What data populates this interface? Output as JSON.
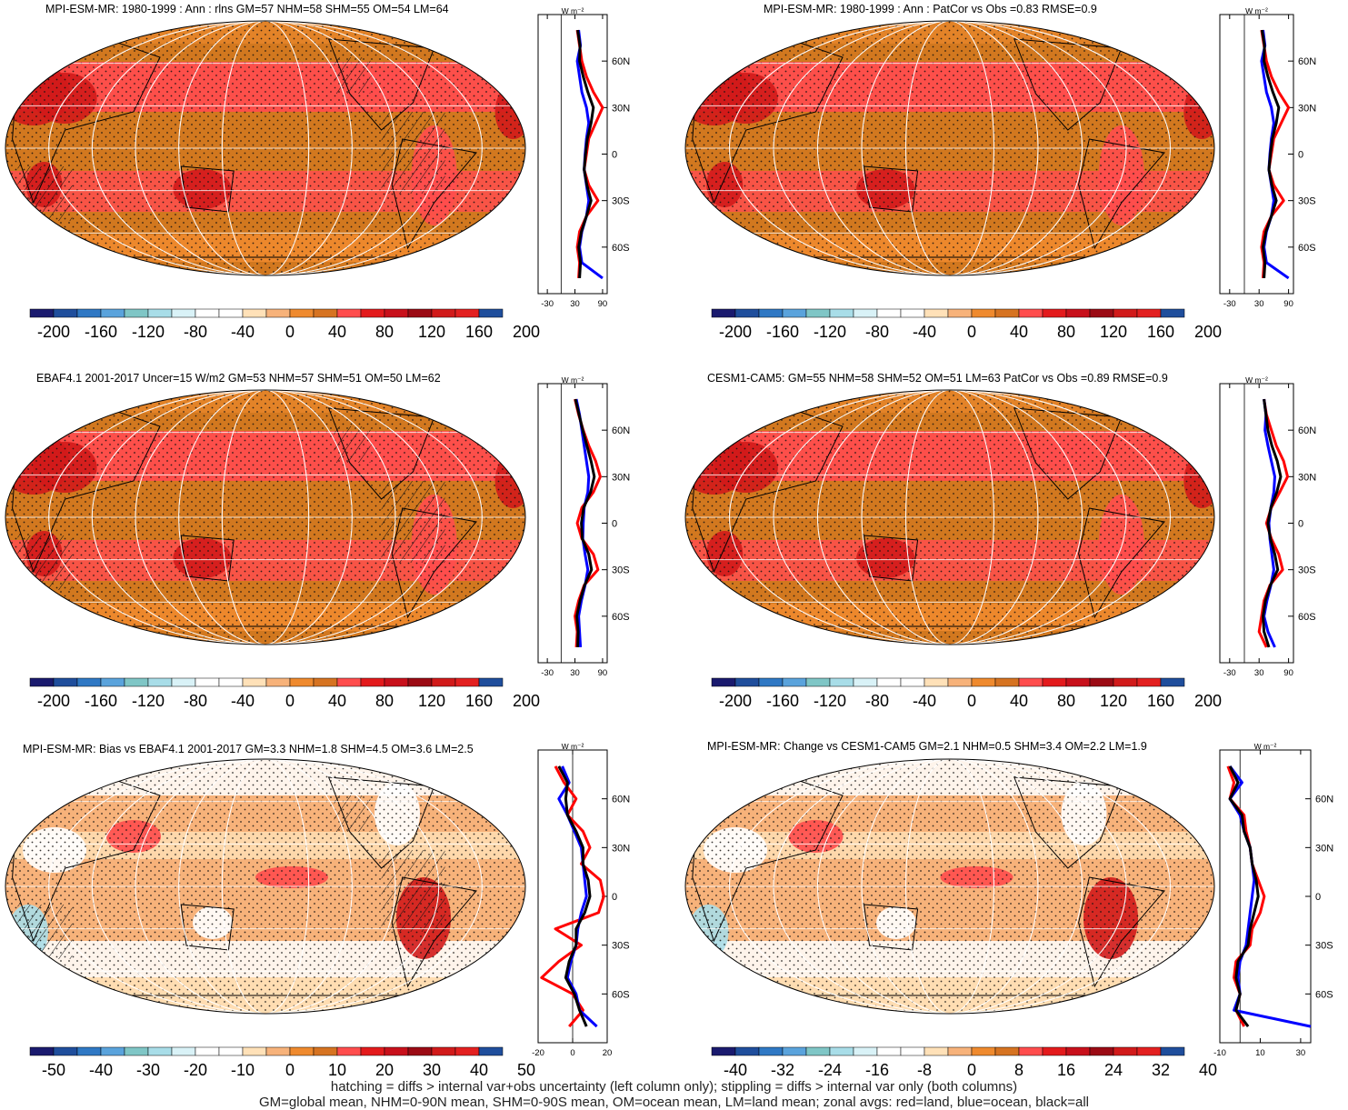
{
  "panels": [
    {
      "title": "MPI-ESM-MR: 1980-1999 : Ann : rlns GM=57 NHM=58 SHM=55 OM=54 LM=64",
      "kind": "mean",
      "hatch": true
    },
    {
      "title": "MPI-ESM-MR: 1980-1999 : Ann : PatCor vs Obs =0.83 RMSE=0.9",
      "kind": "mean",
      "hatch": false
    },
    {
      "title": "EBAF4.1 2001-2017 Uncer=15 W/m2 GM=53 NHM=57 SHM=51 OM=50 LM=62",
      "kind": "mean",
      "hatch": true
    },
    {
      "title": "CESM1-CAM5: GM=55 NHM=58 SHM=52 OM=51 LM=63 PatCor vs Obs =0.89 RMSE=0.9",
      "kind": "mean",
      "hatch": false
    },
    {
      "title": "MPI-ESM-MR: Bias vs EBAF4.1 2001-2017 GM=3.3 NHM=1.8 SHM=4.5 OM=3.6 LM=2.5",
      "kind": "bias",
      "hatch": true
    },
    {
      "title": "MPI-ESM-MR: Change vs CESM1-CAM5 GM=2.1 NHM=0.5 SHM=3.4 OM=2.2 LM=1.9",
      "kind": "change",
      "hatch": false
    }
  ],
  "zonal_units": "W m⁻²",
  "lat_ticks": [
    "60N",
    "30N",
    "0",
    "30S",
    "60S"
  ],
  "colorbars": {
    "mean": {
      "labels": [
        "-200",
        "-160",
        "-120",
        "-80",
        "-40",
        "0",
        "40",
        "80",
        "120",
        "160",
        "200"
      ]
    },
    "bias": {
      "labels": [
        "-50",
        "-40",
        "-30",
        "-20",
        "-10",
        "0",
        "10",
        "20",
        "30",
        "40",
        "50"
      ]
    },
    "change": {
      "labels": [
        "-40",
        "-32",
        "-24",
        "-16",
        "-8",
        "0",
        "8",
        "16",
        "24",
        "32",
        "40"
      ]
    }
  },
  "palette": [
    "#1a1a6e",
    "#1f4e9c",
    "#2f78c4",
    "#5aa3dc",
    "#7fc6c6",
    "#a8dde8",
    "#d9f2f7",
    "#ffffff",
    "#ffffff",
    "#ffe1b8",
    "#f7b27a",
    "#ef8a2e",
    "#d67321",
    "#ff4d4d",
    "#e31a1c",
    "#c8101b",
    "#9b0a14",
    "#d11a1a",
    "#e32020",
    "#1f4e9c"
  ],
  "map_colors": {
    "base_mean": "#d2781f",
    "warm": "#ff4d4d",
    "hot": "#d11a1a",
    "orange": "#ef8a2e",
    "light": "#ffe1b8",
    "white": "#ffffff",
    "blue": "#a8dde8"
  },
  "chart_data": [
    {
      "type": "line",
      "panel": "MPI-ESM-MR rlns 1980-1999",
      "x_axis": {
        "ticks": [
          "-30",
          "30",
          "90"
        ],
        "range": [
          -50,
          100
        ]
      },
      "y_axis": {
        "ticks": [
          "60N",
          "30N",
          "0",
          "30S",
          "60S"
        ],
        "range": [
          -90,
          90
        ]
      },
      "series": [
        {
          "name": "red=land",
          "color": "#ff0000",
          "lat": [
            80,
            70,
            60,
            50,
            40,
            30,
            20,
            10,
            0,
            -10,
            -20,
            -30,
            -40,
            -50,
            -60,
            -70,
            -80
          ],
          "values": [
            35,
            40,
            45,
            55,
            70,
            90,
            75,
            60,
            55,
            50,
            60,
            80,
            55,
            40,
            35,
            40,
            38
          ]
        },
        {
          "name": "blue=ocean",
          "color": "#0000ff",
          "lat": [
            80,
            70,
            60,
            50,
            40,
            30,
            20,
            10,
            0,
            -10,
            -20,
            -30,
            -40,
            -50,
            -60,
            -70,
            -80
          ],
          "values": [
            38,
            42,
            35,
            40,
            45,
            55,
            60,
            55,
            52,
            50,
            55,
            60,
            55,
            45,
            40,
            45,
            90
          ]
        },
        {
          "name": "black=all",
          "color": "#000000",
          "lat": [
            80,
            70,
            60,
            50,
            40,
            30,
            20,
            10,
            0,
            -10,
            -20,
            -30,
            -40,
            -50,
            -60,
            -70,
            -80
          ],
          "values": [
            36,
            41,
            40,
            48,
            58,
            70,
            65,
            57,
            53,
            50,
            56,
            65,
            55,
            44,
            38,
            42,
            40
          ]
        }
      ]
    },
    {
      "type": "line",
      "panel": "MPI-ESM-MR PatCor",
      "x_axis": {
        "ticks": [
          "-30",
          "30",
          "90"
        ],
        "range": [
          -50,
          100
        ]
      },
      "y_axis": {
        "ticks": [
          "60N",
          "30N",
          "0",
          "30S",
          "60S"
        ],
        "range": [
          -90,
          90
        ]
      },
      "series": [
        {
          "name": "red=land",
          "color": "#ff0000",
          "lat": [
            80,
            70,
            60,
            50,
            40,
            30,
            20,
            10,
            0,
            -10,
            -20,
            -30,
            -40,
            -50,
            -60,
            -70,
            -80
          ],
          "values": [
            35,
            40,
            45,
            55,
            70,
            90,
            75,
            60,
            55,
            50,
            60,
            80,
            55,
            40,
            35,
            40,
            38
          ]
        },
        {
          "name": "blue=ocean",
          "color": "#0000ff",
          "lat": [
            80,
            70,
            60,
            50,
            40,
            30,
            20,
            10,
            0,
            -10,
            -20,
            -30,
            -40,
            -50,
            -60,
            -70,
            -80
          ],
          "values": [
            38,
            42,
            35,
            40,
            45,
            55,
            60,
            55,
            52,
            50,
            55,
            60,
            55,
            45,
            40,
            45,
            90
          ]
        },
        {
          "name": "black=all",
          "color": "#000000",
          "lat": [
            80,
            70,
            60,
            50,
            40,
            30,
            20,
            10,
            0,
            -10,
            -20,
            -30,
            -40,
            -50,
            -60,
            -70,
            -80
          ],
          "values": [
            36,
            41,
            40,
            48,
            58,
            70,
            65,
            57,
            53,
            50,
            56,
            65,
            55,
            44,
            38,
            42,
            40
          ]
        }
      ]
    },
    {
      "type": "line",
      "panel": "EBAF4.1 2001-2017",
      "x_axis": {
        "ticks": [
          "-30",
          "30",
          "90"
        ],
        "range": [
          -50,
          100
        ]
      },
      "y_axis": {
        "ticks": [
          "60N",
          "30N",
          "0",
          "30S",
          "60S"
        ],
        "range": [
          -90,
          90
        ]
      },
      "series": [
        {
          "name": "red=land",
          "color": "#ff0000",
          "lat": [
            80,
            70,
            60,
            50,
            40,
            30,
            20,
            10,
            0,
            -10,
            -20,
            -30,
            -40,
            -50,
            -60,
            -70,
            -80
          ],
          "values": [
            30,
            38,
            48,
            60,
            75,
            85,
            70,
            45,
            35,
            45,
            70,
            80,
            50,
            38,
            30,
            35,
            33
          ]
        },
        {
          "name": "blue=ocean",
          "color": "#0000ff",
          "lat": [
            80,
            70,
            60,
            50,
            40,
            30,
            20,
            10,
            0,
            -10,
            -20,
            -30,
            -40,
            -50,
            -60,
            -70,
            -80
          ],
          "values": [
            33,
            40,
            45,
            50,
            55,
            60,
            58,
            50,
            48,
            47,
            52,
            58,
            52,
            44,
            38,
            40,
            42
          ]
        },
        {
          "name": "black=all",
          "color": "#000000",
          "lat": [
            80,
            70,
            60,
            50,
            40,
            30,
            20,
            10,
            0,
            -10,
            -20,
            -30,
            -40,
            -50,
            -60,
            -70,
            -80
          ],
          "values": [
            31,
            39,
            47,
            56,
            65,
            72,
            64,
            49,
            44,
            46,
            60,
            66,
            51,
            41,
            34,
            37,
            36
          ]
        }
      ]
    },
    {
      "type": "line",
      "panel": "CESM1-CAM5",
      "x_axis": {
        "ticks": [
          "-30",
          "30",
          "90"
        ],
        "range": [
          -50,
          100
        ]
      },
      "y_axis": {
        "ticks": [
          "60N",
          "30N",
          "0",
          "30S",
          "60S"
        ],
        "range": [
          -90,
          90
        ]
      },
      "series": [
        {
          "name": "red=land",
          "color": "#ff0000",
          "lat": [
            80,
            70,
            60,
            50,
            40,
            30,
            20,
            10,
            0,
            -10,
            -20,
            -30,
            -40,
            -50,
            -60,
            -70,
            -80
          ],
          "values": [
            40,
            45,
            55,
            65,
            80,
            88,
            72,
            55,
            45,
            55,
            70,
            78,
            52,
            40,
            35,
            30,
            45
          ]
        },
        {
          "name": "blue=ocean",
          "color": "#0000ff",
          "lat": [
            80,
            70,
            60,
            50,
            40,
            30,
            20,
            10,
            0,
            -10,
            -20,
            -30,
            -40,
            -50,
            -60,
            -70,
            -80
          ],
          "values": [
            40,
            44,
            42,
            48,
            55,
            62,
            60,
            54,
            50,
            52,
            56,
            60,
            54,
            46,
            40,
            48,
            62
          ]
        },
        {
          "name": "black=all",
          "color": "#000000",
          "lat": [
            80,
            70,
            60,
            50,
            40,
            30,
            20,
            10,
            0,
            -10,
            -20,
            -30,
            -40,
            -50,
            -60,
            -70,
            -80
          ],
          "values": [
            40,
            44,
            48,
            56,
            67,
            74,
            66,
            54,
            48,
            53,
            62,
            68,
            53,
            43,
            38,
            40,
            50
          ]
        }
      ]
    },
    {
      "type": "line",
      "panel": "MPI-ESM-MR Bias vs EBAF4.1",
      "x_axis": {
        "ticks": [
          "-20",
          "0",
          "20"
        ],
        "range": [
          -20,
          20
        ]
      },
      "y_axis": {
        "ticks": [
          "60N",
          "30N",
          "0",
          "30S",
          "60S"
        ],
        "range": [
          -90,
          90
        ]
      },
      "series": [
        {
          "name": "red=land",
          "color": "#ff0000",
          "lat": [
            80,
            70,
            60,
            50,
            40,
            30,
            20,
            10,
            0,
            -10,
            -20,
            -30,
            -40,
            -50,
            -60,
            -70,
            -80
          ],
          "values": [
            -10,
            -5,
            2,
            -3,
            6,
            10,
            5,
            16,
            18,
            15,
            -10,
            5,
            -8,
            -18,
            0,
            6,
            -2
          ]
        },
        {
          "name": "blue=ocean",
          "color": "#0000ff",
          "lat": [
            80,
            70,
            60,
            50,
            40,
            30,
            20,
            10,
            0,
            -10,
            -20,
            -30,
            -40,
            -50,
            -60,
            -70,
            -80
          ],
          "values": [
            -6,
            -2,
            -8,
            -3,
            1,
            5,
            6,
            7,
            8,
            5,
            3,
            2,
            -1,
            -3,
            2,
            4,
            14
          ]
        },
        {
          "name": "black=all",
          "color": "#000000",
          "lat": [
            80,
            70,
            60,
            50,
            40,
            30,
            20,
            10,
            0,
            -10,
            -20,
            -30,
            -40,
            -50,
            -60,
            -70,
            -80
          ],
          "values": [
            -8,
            -3,
            -4,
            -3,
            2,
            6,
            6,
            9,
            10,
            7,
            2,
            2,
            -2,
            -4,
            1,
            4,
            8
          ]
        }
      ]
    },
    {
      "type": "line",
      "panel": "MPI-ESM-MR Change vs CESM1-CAM5",
      "x_axis": {
        "ticks": [
          "-10",
          "10",
          "30"
        ],
        "range": [
          -10,
          35
        ]
      },
      "y_axis": {
        "ticks": [
          "60N",
          "30N",
          "0",
          "30S",
          "60S"
        ],
        "range": [
          -90,
          90
        ]
      },
      "series": [
        {
          "name": "red=land",
          "color": "#ff0000",
          "lat": [
            80,
            70,
            60,
            50,
            40,
            30,
            20,
            10,
            0,
            -10,
            -20,
            -30,
            -40,
            -50,
            -60,
            -70,
            -80
          ],
          "values": [
            -6,
            -3,
            -5,
            2,
            3,
            5,
            6,
            9,
            12,
            10,
            6,
            5,
            -2,
            -3,
            0,
            -2,
            2
          ]
        },
        {
          "name": "blue=ocean",
          "color": "#0000ff",
          "lat": [
            80,
            70,
            60,
            50,
            40,
            30,
            20,
            10,
            0,
            -10,
            -20,
            -30,
            -40,
            -50,
            -60,
            -70,
            -80
          ],
          "values": [
            -5,
            1,
            -5,
            0,
            2,
            5,
            6,
            7,
            6,
            5,
            4,
            3,
            0,
            -1,
            0,
            -3,
            35
          ]
        },
        {
          "name": "black=all",
          "color": "#000000",
          "lat": [
            80,
            70,
            60,
            50,
            40,
            30,
            20,
            10,
            0,
            -10,
            -20,
            -30,
            -40,
            -50,
            -60,
            -70,
            -80
          ],
          "values": [
            -5,
            -1,
            -5,
            1,
            2,
            5,
            6,
            8,
            9,
            7,
            5,
            4,
            -1,
            -2,
            0,
            -2,
            4
          ]
        }
      ]
    }
  ],
  "footer": {
    "line1": "hatching = diffs > internal var+obs uncertainty (left column only); stippling = diffs > internal var only (both columns)",
    "line2": "GM=global mean, NHM=0-90N mean, SHM=0-90S mean, OM=ocean mean, LM=land mean; zonal avgs: red=land, blue=ocean, black=all"
  }
}
